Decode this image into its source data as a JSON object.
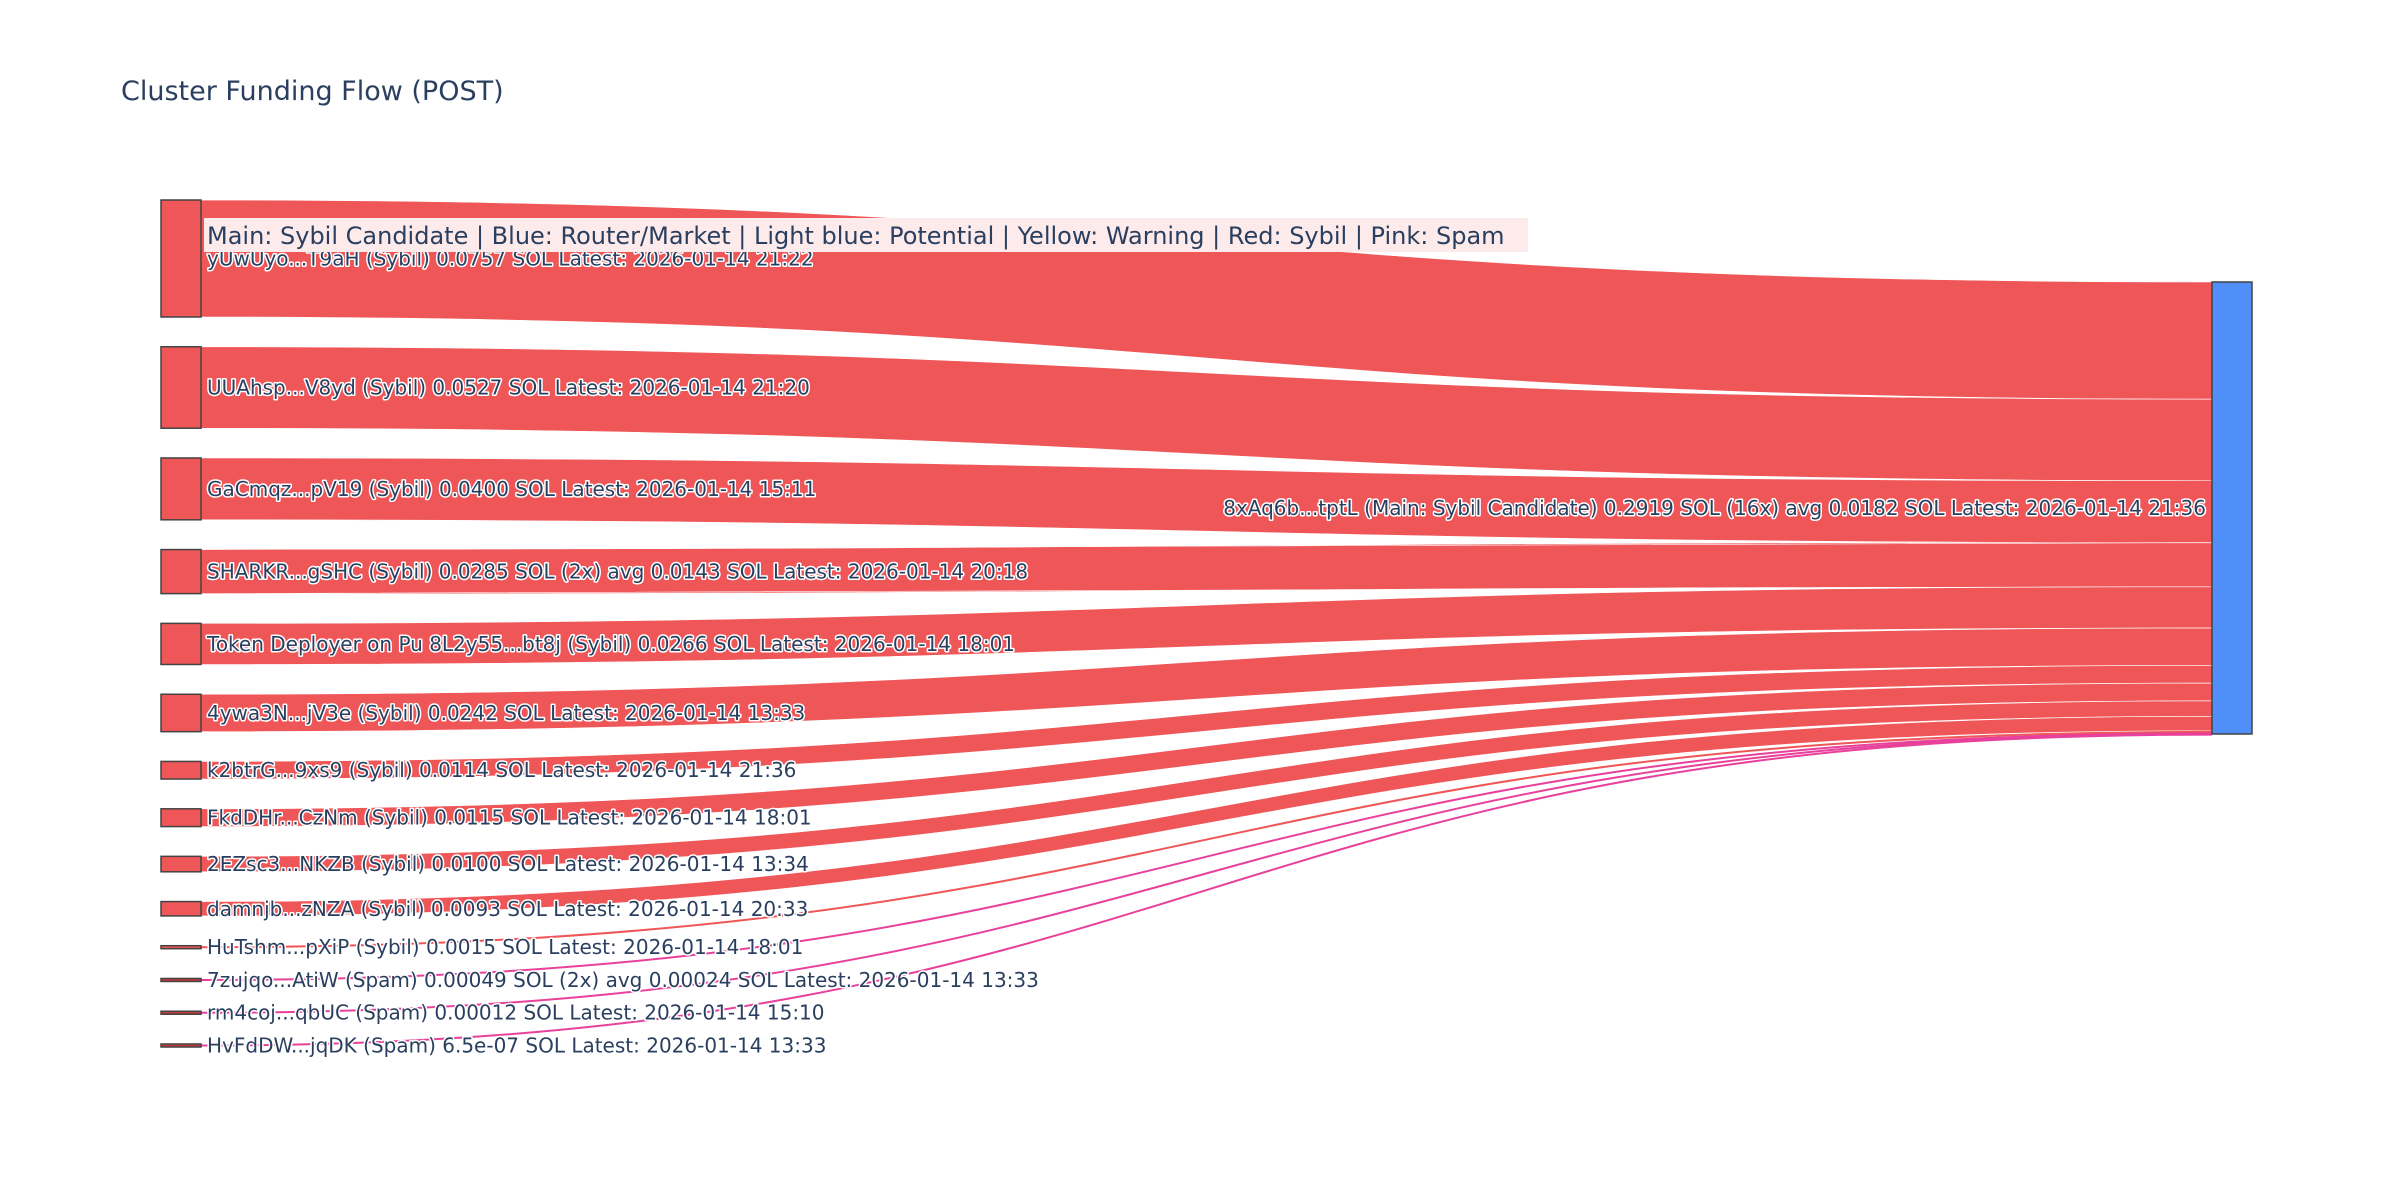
{
  "title": "Cluster Funding Flow (POST)",
  "legend_text": "Main: Sybil Candidate  |  Blue: Router/Market | Light blue: Potential | Yellow: Warning | Red: Sybil | Pink: Spam",
  "colors": {
    "sybil": "#ef5658",
    "spam": "#e8419b",
    "main": "#4f8ff7",
    "legend_bg": "#fdeaea",
    "node_stroke": "#444444",
    "text": "#2a3f5f"
  },
  "chart_data": {
    "type": "sankey",
    "title": "Cluster Funding Flow (POST)",
    "target": {
      "label": "8xAq6b...tptL (Main: Sybil Candidate) 0.2919 SOL (16x) avg 0.0182 SOL Latest: 2026-01-14 21:36",
      "category": "main"
    },
    "sources": [
      {
        "label": "yUwUyo...T9aH (Sybil) 0.0757 SOL Latest: 2026-01-14 21:22",
        "value": 0.0757,
        "category": "sybil"
      },
      {
        "label": "UUAhsp...V8yd (Sybil) 0.0527 SOL Latest: 2026-01-14 21:20",
        "value": 0.0527,
        "category": "sybil"
      },
      {
        "label": "GaCmqz...pV19 (Sybil) 0.0400 SOL Latest: 2026-01-14 15:11",
        "value": 0.04,
        "category": "sybil"
      },
      {
        "label": "SHARKR...gSHC (Sybil) 0.0285 SOL (2x) avg 0.0143 SOL Latest: 2026-01-14 20:18",
        "value": 0.0285,
        "category": "sybil"
      },
      {
        "label": "Token Deployer on Pu 8L2y55...bt8j (Sybil) 0.0266 SOL Latest: 2026-01-14 18:01",
        "value": 0.0266,
        "category": "sybil"
      },
      {
        "label": "4ywa3N...jV3e (Sybil) 0.0242 SOL Latest: 2026-01-14 13:33",
        "value": 0.0242,
        "category": "sybil"
      },
      {
        "label": "k2btrG...9xs9 (Sybil) 0.0114 SOL Latest: 2026-01-14 21:36",
        "value": 0.0114,
        "category": "sybil"
      },
      {
        "label": "FkdDHr...CzNm (Sybil) 0.0115 SOL Latest: 2026-01-14 18:01",
        "value": 0.0115,
        "category": "sybil"
      },
      {
        "label": "2EZsc3...NKZB (Sybil) 0.0100 SOL Latest: 2026-01-14 13:34",
        "value": 0.01,
        "category": "sybil"
      },
      {
        "label": "damnjb...zNZA (Sybil) 0.0093 SOL Latest: 2026-01-14 20:33",
        "value": 0.0093,
        "category": "sybil"
      },
      {
        "label": "HuTshm...pXiP (Sybil) 0.0015 SOL Latest: 2026-01-14 18:01",
        "value": 0.0015,
        "category": "sybil"
      },
      {
        "label": "7zujqo...AtiW (Spam) 0.00049 SOL (2x) avg 0.00024 SOL Latest: 2026-01-14 13:33",
        "value": 0.00049,
        "category": "spam"
      },
      {
        "label": "rm4coj...qbUC (Spam) 0.00012 SOL Latest: 2026-01-14 15:10",
        "value": 0.00012,
        "category": "spam"
      },
      {
        "label": "HvFdDW...jqDK (Spam) 6.5e-07 SOL Latest: 2026-01-14 13:33",
        "value": 6.5e-07,
        "category": "spam"
      }
    ]
  }
}
